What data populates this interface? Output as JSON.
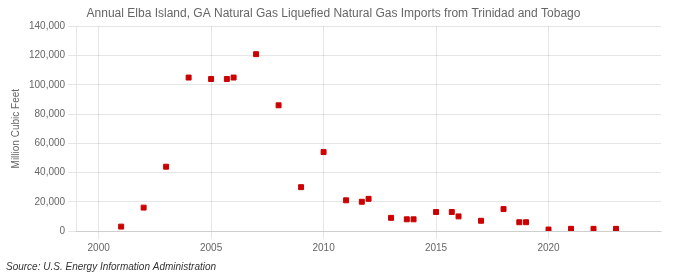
{
  "chart_data": {
    "type": "scatter",
    "title": "Annual Elba Island, GA Natural Gas Liquefied Natural Gas Imports from Trinidad and Tobago",
    "ylabel": "Million Cubic Feet",
    "annotation": "Source: U.S. Energy Information Administration",
    "x": [
      2001,
      2002,
      2003,
      2004,
      2005,
      2005.7,
      2006,
      2007,
      2008,
      2009,
      2010,
      2011,
      2011.7,
      2012,
      2013,
      2013.7,
      2014,
      2015,
      2015.7,
      2016,
      2017,
      2018,
      2018.7,
      2019,
      2020,
      2021,
      2022,
      2023
    ],
    "values": [
      3000,
      16000,
      44000,
      105000,
      104000,
      104000,
      105000,
      121000,
      86000,
      30000,
      54000,
      21000,
      20000,
      22000,
      9000,
      8000,
      8000,
      13000,
      13000,
      10000,
      7000,
      15000,
      6000,
      6000,
      1000,
      1500,
      1500,
      1500
    ],
    "color": "#cc0000",
    "marker": "square",
    "xlim": [
      1999,
      2025
    ],
    "xticks": [
      2000,
      2005,
      2010,
      2015,
      2020
    ],
    "ylim": [
      0,
      140000
    ],
    "yticks": [
      0,
      {
        "value": 20000,
        "label": "20,000"
      },
      {
        "value": 40000,
        "label": "40,000"
      },
      {
        "value": 60000,
        "label": "60,000"
      },
      {
        "value": 80000,
        "label": "80,000"
      },
      {
        "value": 100000,
        "label": "100,000"
      },
      {
        "value": 120000,
        "label": "120,000"
      },
      {
        "value": 140000,
        "label": "140,000"
      }
    ],
    "grid": true
  }
}
